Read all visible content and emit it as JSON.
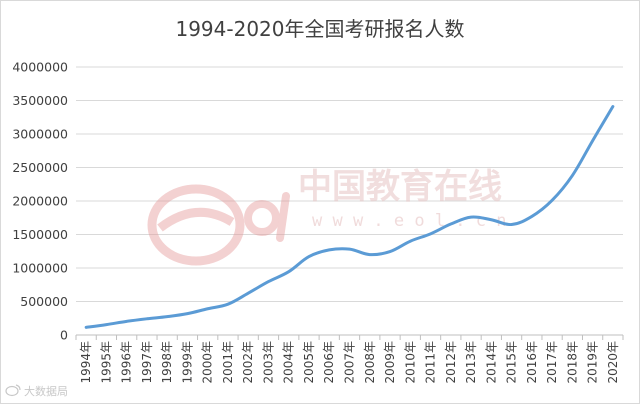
{
  "chart_data": {
    "type": "line",
    "title": "1994-2020年全国考研报名人数",
    "xlabel": "",
    "ylabel": "",
    "categories": [
      "1994年",
      "1995年",
      "1996年",
      "1997年",
      "1998年",
      "1999年",
      "2000年",
      "2001年",
      "2002年",
      "2003年",
      "2004年",
      "2005年",
      "2006年",
      "2007年",
      "2008年",
      "2009年",
      "2010年",
      "2011年",
      "2012年",
      "2013年",
      "2014年",
      "2015年",
      "2016年",
      "2017年",
      "2018年",
      "2019年",
      "2020年"
    ],
    "series": [
      {
        "values": [
          114000,
          155000,
          204000,
          242000,
          274000,
          319000,
          392000,
          460000,
          624000,
          797000,
          945000,
          1170000,
          1270000,
          1282000,
          1200000,
          1246000,
          1400000,
          1510000,
          1656000,
          1760000,
          1720000,
          1649000,
          1770000,
          2010000,
          2380000,
          2900000,
          3410000
        ],
        "color": "#5b9bd5"
      }
    ],
    "ylim": [
      0,
      4000000
    ],
    "yticks": [
      "0",
      "500000",
      "1000000",
      "1500000",
      "2000000",
      "2500000",
      "3000000",
      "3500000",
      "4000000"
    ],
    "grid": true,
    "legend": "none"
  },
  "watermark": {
    "logo_text": "eol",
    "brand": "中国教育在线",
    "url": "w w w . e o l . c n"
  },
  "source": {
    "label": "大数据局"
  }
}
